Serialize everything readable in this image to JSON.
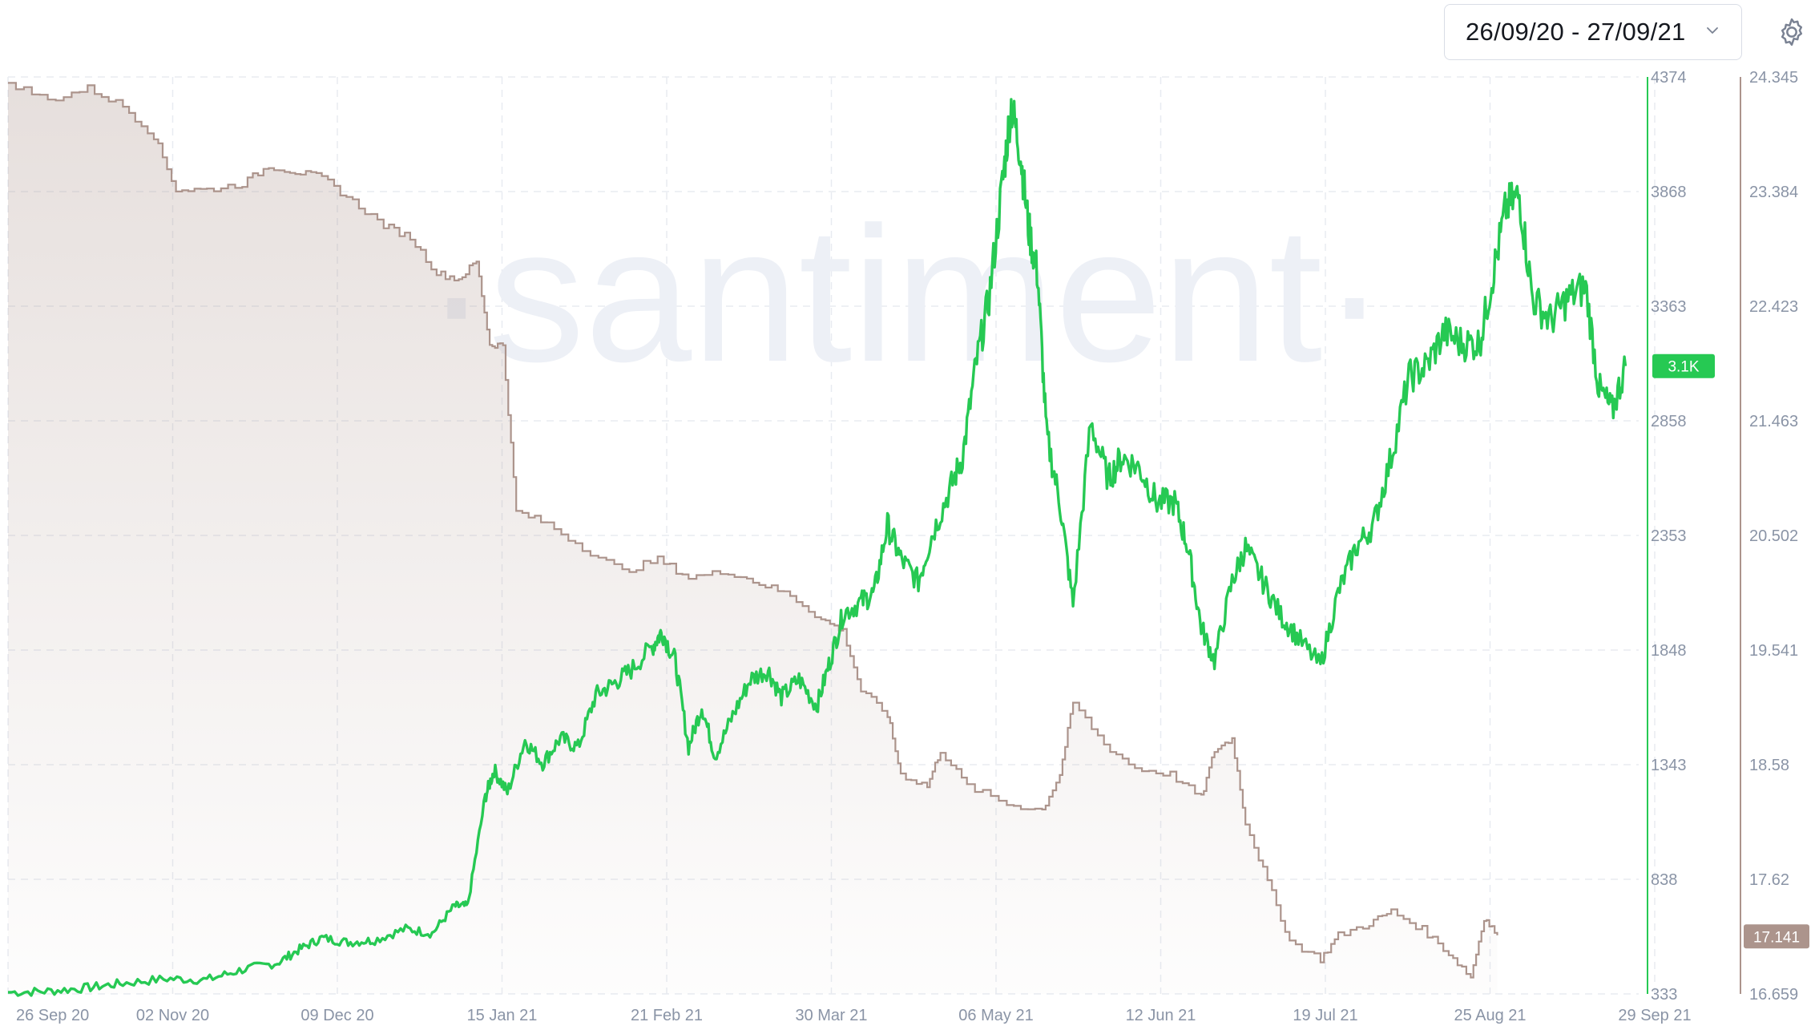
{
  "header": {
    "date_range": "26/09/20 - 27/09/21"
  },
  "icons": {
    "date_range_chevron": "chevron-down-icon",
    "settings": "gear-icon"
  },
  "watermark": "·santiment·",
  "colors": {
    "green": "#26c953",
    "brown": "#ac948c",
    "grid": "#e8ebf1",
    "tick_text": "#8a94a6"
  },
  "chart_data": {
    "type": "line",
    "x_ticks": [
      "26 Sep 20",
      "02 Nov 20",
      "09 Dec 20",
      "15 Jan 21",
      "21 Feb 21",
      "30 Mar 21",
      "06 May 21",
      "12 Jun 21",
      "19 Jul 21",
      "25 Aug 21",
      "29 Sep 21"
    ],
    "y_right_ticks": [
      "4374",
      "3868",
      "3363",
      "2858",
      "2353",
      "1848",
      "1343",
      "838",
      "333"
    ],
    "y_right2_ticks": [
      "24.345",
      "23.384",
      "22.423",
      "21.463",
      "20.502",
      "19.541",
      "18.58",
      "17.62",
      "16.659"
    ],
    "y_right_range": [
      333,
      4374
    ],
    "y_right2_range": [
      16.659,
      24.345
    ],
    "grid": true,
    "series": [
      {
        "axis": "right",
        "color": "#26c953",
        "current_label": "3.1K",
        "points": [
          [
            "2020-09-26",
            340
          ],
          [
            "2020-10-05",
            345
          ],
          [
            "2020-10-14",
            360
          ],
          [
            "2020-10-22",
            380
          ],
          [
            "2020-11-01",
            400
          ],
          [
            "2020-11-10",
            395
          ],
          [
            "2020-11-18",
            440
          ],
          [
            "2020-11-26",
            470
          ],
          [
            "2020-12-01",
            530
          ],
          [
            "2020-12-06",
            580
          ],
          [
            "2020-12-12",
            560
          ],
          [
            "2020-12-18",
            570
          ],
          [
            "2020-12-25",
            620
          ],
          [
            "2020-12-31",
            600
          ],
          [
            "2021-01-05",
            720
          ],
          [
            "2021-01-08",
            720
          ],
          [
            "2021-01-12",
            1200
          ],
          [
            "2021-01-14",
            1320
          ],
          [
            "2021-01-17",
            1220
          ],
          [
            "2021-01-21",
            1450
          ],
          [
            "2021-01-25",
            1350
          ],
          [
            "2021-01-29",
            1460
          ],
          [
            "2021-02-02",
            1420
          ],
          [
            "2021-02-06",
            1650
          ],
          [
            "2021-02-10",
            1700
          ],
          [
            "2021-02-14",
            1760
          ],
          [
            "2021-02-19",
            1870
          ],
          [
            "2021-02-21",
            1930
          ],
          [
            "2021-02-24",
            1800
          ],
          [
            "2021-02-27",
            1420
          ],
          [
            "2021-03-02",
            1600
          ],
          [
            "2021-03-05",
            1380
          ],
          [
            "2021-03-09",
            1560
          ],
          [
            "2021-03-13",
            1720
          ],
          [
            "2021-03-17",
            1760
          ],
          [
            "2021-03-20",
            1640
          ],
          [
            "2021-03-24",
            1720
          ],
          [
            "2021-03-28",
            1600
          ],
          [
            "2021-03-31",
            1800
          ],
          [
            "2021-04-03",
            2010
          ],
          [
            "2021-04-07",
            2060
          ],
          [
            "2021-04-10",
            2100
          ],
          [
            "2021-04-13",
            2400
          ],
          [
            "2021-04-16",
            2250
          ],
          [
            "2021-04-20",
            2150
          ],
          [
            "2021-04-23",
            2350
          ],
          [
            "2021-04-27",
            2550
          ],
          [
            "2021-04-30",
            2700
          ],
          [
            "2021-05-03",
            3100
          ],
          [
            "2021-05-06",
            3400
          ],
          [
            "2021-05-09",
            3900
          ],
          [
            "2021-05-11",
            4250
          ],
          [
            "2021-05-13",
            4050
          ],
          [
            "2021-05-15",
            3700
          ],
          [
            "2021-05-17",
            3500
          ],
          [
            "2021-05-19",
            2800
          ],
          [
            "2021-05-22",
            2500
          ],
          [
            "2021-05-25",
            2050
          ],
          [
            "2021-05-29",
            2850
          ],
          [
            "2021-06-02",
            2600
          ],
          [
            "2021-06-05",
            2700
          ],
          [
            "2021-06-09",
            2650
          ],
          [
            "2021-06-13",
            2500
          ],
          [
            "2021-06-17",
            2500
          ],
          [
            "2021-06-20",
            2300
          ],
          [
            "2021-06-23",
            1950
          ],
          [
            "2021-06-26",
            1800
          ],
          [
            "2021-06-30",
            2150
          ],
          [
            "2021-07-03",
            2300
          ],
          [
            "2021-07-07",
            2150
          ],
          [
            "2021-07-11",
            2000
          ],
          [
            "2021-07-15",
            1900
          ],
          [
            "2021-07-20",
            1780
          ],
          [
            "2021-07-24",
            2100
          ],
          [
            "2021-07-28",
            2300
          ],
          [
            "2021-08-01",
            2400
          ],
          [
            "2021-08-05",
            2700
          ],
          [
            "2021-08-09",
            3050
          ],
          [
            "2021-08-13",
            3100
          ],
          [
            "2021-08-17",
            3250
          ],
          [
            "2021-08-21",
            3200
          ],
          [
            "2021-08-25",
            3200
          ],
          [
            "2021-08-28",
            3500
          ],
          [
            "2021-08-31",
            3800
          ],
          [
            "2021-09-03",
            3850
          ],
          [
            "2021-09-06",
            3400
          ],
          [
            "2021-09-10",
            3300
          ],
          [
            "2021-09-14",
            3400
          ],
          [
            "2021-09-18",
            3450
          ],
          [
            "2021-09-21",
            3000
          ],
          [
            "2021-09-24",
            2900
          ],
          [
            "2021-09-27",
            3100
          ]
        ]
      },
      {
        "axis": "right2",
        "color": "#ac948c",
        "current_label": "17.141",
        "points": [
          [
            "2020-09-26",
            24.3
          ],
          [
            "2020-10-05",
            24.15
          ],
          [
            "2020-10-14",
            24.25
          ],
          [
            "2020-10-22",
            24.1
          ],
          [
            "2020-10-29",
            23.85
          ],
          [
            "2020-11-03",
            23.4
          ],
          [
            "2020-11-10",
            23.4
          ],
          [
            "2020-11-18",
            23.45
          ],
          [
            "2020-11-24",
            23.6
          ],
          [
            "2020-11-30",
            23.55
          ],
          [
            "2020-12-06",
            23.5
          ],
          [
            "2020-12-13",
            23.3
          ],
          [
            "2020-12-20",
            23.1
          ],
          [
            "2020-12-26",
            23.0
          ],
          [
            "2021-01-01",
            22.7
          ],
          [
            "2021-01-06",
            22.65
          ],
          [
            "2021-01-10",
            22.8
          ],
          [
            "2021-01-13",
            22.1
          ],
          [
            "2021-01-16",
            22.1
          ],
          [
            "2021-01-19",
            20.7
          ],
          [
            "2021-01-26",
            20.6
          ],
          [
            "2021-02-03",
            20.4
          ],
          [
            "2021-02-12",
            20.2
          ],
          [
            "2021-02-20",
            20.3
          ],
          [
            "2021-02-27",
            20.15
          ],
          [
            "2021-03-08",
            20.2
          ],
          [
            "2021-03-15",
            20.1
          ],
          [
            "2021-03-22",
            20.0
          ],
          [
            "2021-03-29",
            19.8
          ],
          [
            "2021-04-03",
            19.7
          ],
          [
            "2021-04-07",
            19.2
          ],
          [
            "2021-04-13",
            19.0
          ],
          [
            "2021-04-16",
            18.5
          ],
          [
            "2021-04-22",
            18.4
          ],
          [
            "2021-04-25",
            18.7
          ],
          [
            "2021-05-01",
            18.4
          ],
          [
            "2021-05-10",
            18.25
          ],
          [
            "2021-05-18",
            18.2
          ],
          [
            "2021-05-22",
            18.5
          ],
          [
            "2021-05-25",
            19.1
          ],
          [
            "2021-06-01",
            18.75
          ],
          [
            "2021-06-08",
            18.55
          ],
          [
            "2021-06-16",
            18.5
          ],
          [
            "2021-06-23",
            18.3
          ],
          [
            "2021-06-26",
            18.7
          ],
          [
            "2021-06-30",
            18.8
          ],
          [
            "2021-07-03",
            18.1
          ],
          [
            "2021-07-08",
            17.6
          ],
          [
            "2021-07-13",
            17.1
          ],
          [
            "2021-07-20",
            16.95
          ],
          [
            "2021-07-24",
            17.15
          ],
          [
            "2021-07-31",
            17.25
          ],
          [
            "2021-08-05",
            17.35
          ],
          [
            "2021-08-12",
            17.2
          ],
          [
            "2021-08-18",
            17.0
          ],
          [
            "2021-08-23",
            16.8
          ],
          [
            "2021-08-26",
            17.3
          ],
          [
            "2021-08-29",
            17.15
          ]
        ]
      }
    ]
  }
}
